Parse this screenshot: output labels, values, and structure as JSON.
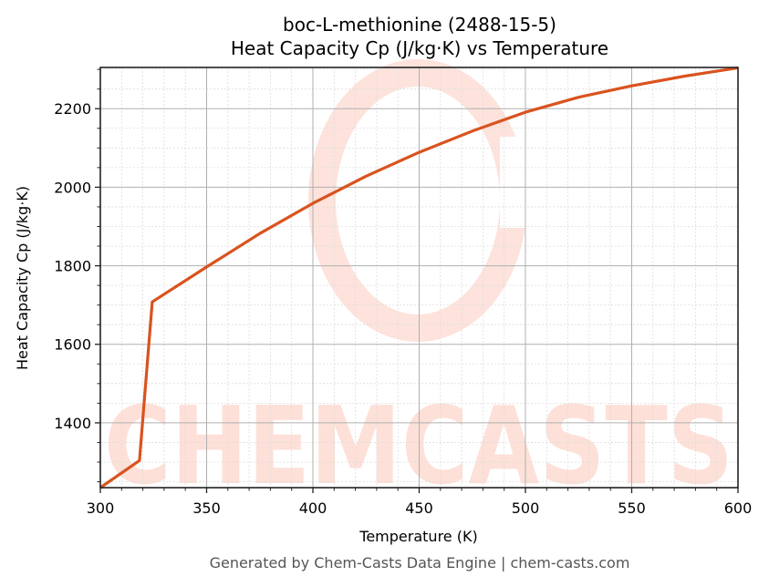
{
  "chart": {
    "title_line1": "boc-L-methionine (2488-15-5)",
    "title_line2": "Heat Capacity Cp (J/kg·K) vs Temperature",
    "xlabel": "Temperature (K)",
    "ylabel": "Heat Capacity Cp (J/kg·K)",
    "x_ticks": [
      "300",
      "350",
      "400",
      "450",
      "500",
      "550",
      "600"
    ],
    "y_ticks": [
      "1400",
      "1600",
      "1800",
      "2000",
      "2200"
    ],
    "footer": "Generated by Chem-Casts Data Engine | chem-casts.com",
    "watermark": "CHEMCASTS",
    "line_color": "#d9531e",
    "watermark_color": "#fde0d8"
  },
  "chart_data": {
    "type": "line",
    "title": "boc-L-methionine (2488-15-5) Heat Capacity Cp (J/kg·K) vs Temperature",
    "xlabel": "Temperature (K)",
    "ylabel": "Heat Capacity Cp (J/kg·K)",
    "xlim": [
      300,
      600
    ],
    "ylim": [
      1235,
      2305
    ],
    "grid": true,
    "minor_grid": true,
    "legend": null,
    "series": [
      {
        "name": "Heat Capacity Cp",
        "color": "#d9531e",
        "x": [
          300,
          318.4,
          324.4,
          350,
          375,
          400,
          425,
          450,
          475,
          500,
          525,
          550,
          575,
          600
        ],
        "y": [
          1235,
          1304,
          1708,
          1797,
          1882,
          1959,
          2028,
          2089,
          2143,
          2191,
          2229,
          2258,
          2283,
          2304
        ]
      }
    ]
  }
}
